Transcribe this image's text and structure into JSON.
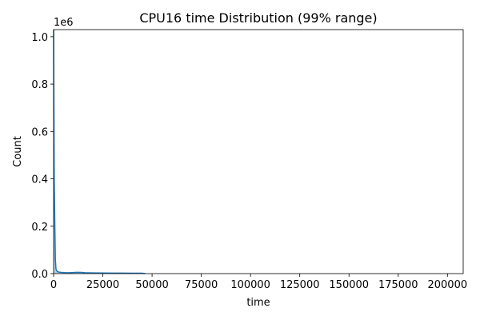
{
  "chart_data": {
    "type": "area",
    "title": "CPU16 time Distribution (99% range)",
    "xlabel": "time",
    "ylabel": "Count",
    "y_multiplier_label": "1e6",
    "xlim": [
      0,
      208000
    ],
    "ylim": [
      0,
      1030000
    ],
    "x_ticks": [
      0,
      25000,
      50000,
      75000,
      100000,
      125000,
      150000,
      175000,
      200000
    ],
    "x_tick_labels": [
      "0",
      "25000",
      "50000",
      "75000",
      "100000",
      "125000",
      "150000",
      "175000",
      "200000"
    ],
    "y_ticks": [
      0,
      200000,
      400000,
      600000,
      800000,
      1000000
    ],
    "y_tick_labels": [
      "0.0",
      "0.2",
      "0.4",
      "0.6",
      "0.8",
      "1.0"
    ],
    "grid": false,
    "colors": {
      "fill": "#1f77b4",
      "line": "#1f77b4"
    },
    "series": [
      {
        "x": [
          0,
          300,
          600,
          900,
          1200,
          1600,
          2000,
          3000,
          4000,
          5000,
          6000,
          8000,
          10000,
          12000,
          14000,
          16000,
          18000,
          20000,
          25000,
          30000,
          35000,
          40000,
          45000,
          46500
        ],
        "values": [
          1030000,
          400000,
          220000,
          60000,
          20000,
          12000,
          8000,
          6000,
          5000,
          4500,
          4000,
          4000,
          4500,
          5500,
          5000,
          4000,
          3500,
          3000,
          2500,
          2200,
          2000,
          1800,
          1500,
          0
        ]
      }
    ]
  }
}
